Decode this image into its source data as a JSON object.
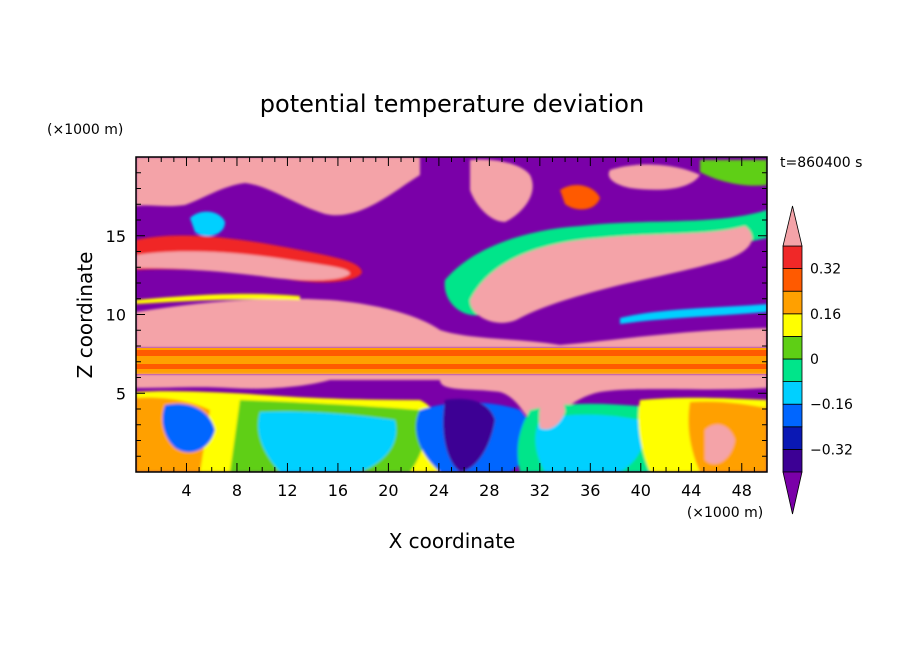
{
  "chart_data": {
    "type": "heatmap",
    "title": "potential temperature deviation",
    "xlabel": "X coordinate",
    "ylabel": "Z coordinate",
    "x_unit": "(×1000 m)",
    "y_unit": "(×1000 m)",
    "time_label": "t=860400 s",
    "xlim": [
      0,
      50
    ],
    "ylim": [
      0,
      20
    ],
    "x_ticks": [
      4,
      8,
      12,
      16,
      20,
      24,
      28,
      32,
      36,
      40,
      44,
      48
    ],
    "y_ticks": [
      5,
      10,
      15
    ],
    "colorbar": {
      "levels": [
        -0.4,
        -0.32,
        -0.24,
        -0.16,
        -0.08,
        0,
        0.08,
        0.16,
        0.24,
        0.32,
        0.4
      ],
      "labels": [
        "0.32",
        "0.16",
        "0",
        "−0.16",
        "−0.32"
      ],
      "label_values": [
        0.32,
        0.16,
        0,
        -0.16,
        -0.32
      ],
      "colors": [
        "#7a00a8",
        "#3c0094",
        "#0a18b4",
        "#0066ff",
        "#00d0ff",
        "#00e58a",
        "#5ecf15",
        "#ffff00",
        "#ffa000",
        "#ff5a00",
        "#f02828",
        "#f4a3a8"
      ],
      "extend": "both"
    },
    "grid": false,
    "legend": "colorbar-right"
  }
}
